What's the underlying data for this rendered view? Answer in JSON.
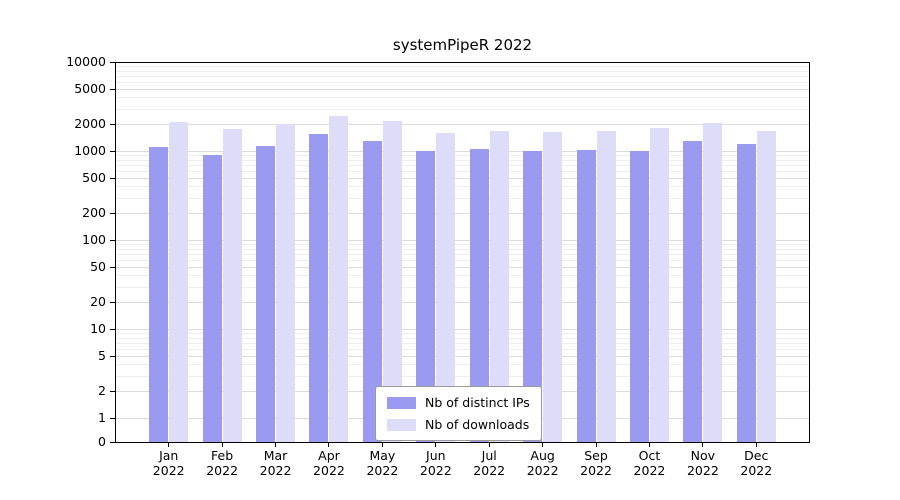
{
  "chart_data": {
    "type": "bar",
    "title": "systemPipeR 2022",
    "categories": [
      "Jan 2022",
      "Feb 2022",
      "Mar 2022",
      "Apr 2022",
      "May 2022",
      "Jun 2022",
      "Jul 2022",
      "Aug 2022",
      "Sep 2022",
      "Oct 2022",
      "Nov 2022",
      "Dec 2022"
    ],
    "series": [
      {
        "name": "Nb of distinct IPs",
        "color": "#9a9af0",
        "values": [
          1100,
          900,
          1150,
          1550,
          1300,
          1000,
          1050,
          1000,
          1020,
          1010,
          1300,
          1200
        ]
      },
      {
        "name": "Nb of downloads",
        "color": "#dddcf9",
        "values": [
          2100,
          1750,
          2000,
          2500,
          2150,
          1600,
          1700,
          1650,
          1700,
          1800,
          2050,
          1700
        ]
      }
    ],
    "yscale": "log",
    "ylim": [
      0,
      10000
    ],
    "yticks": [
      0,
      1,
      2,
      5,
      10,
      20,
      50,
      100,
      200,
      500,
      1000,
      2000,
      5000,
      10000
    ],
    "grid": true,
    "legend_position": "bottom-center",
    "colors": {
      "grid_major": "#dcdcdc",
      "grid_minor": "#eeeeee",
      "axis": "#000000",
      "background": "#ffffff"
    }
  }
}
